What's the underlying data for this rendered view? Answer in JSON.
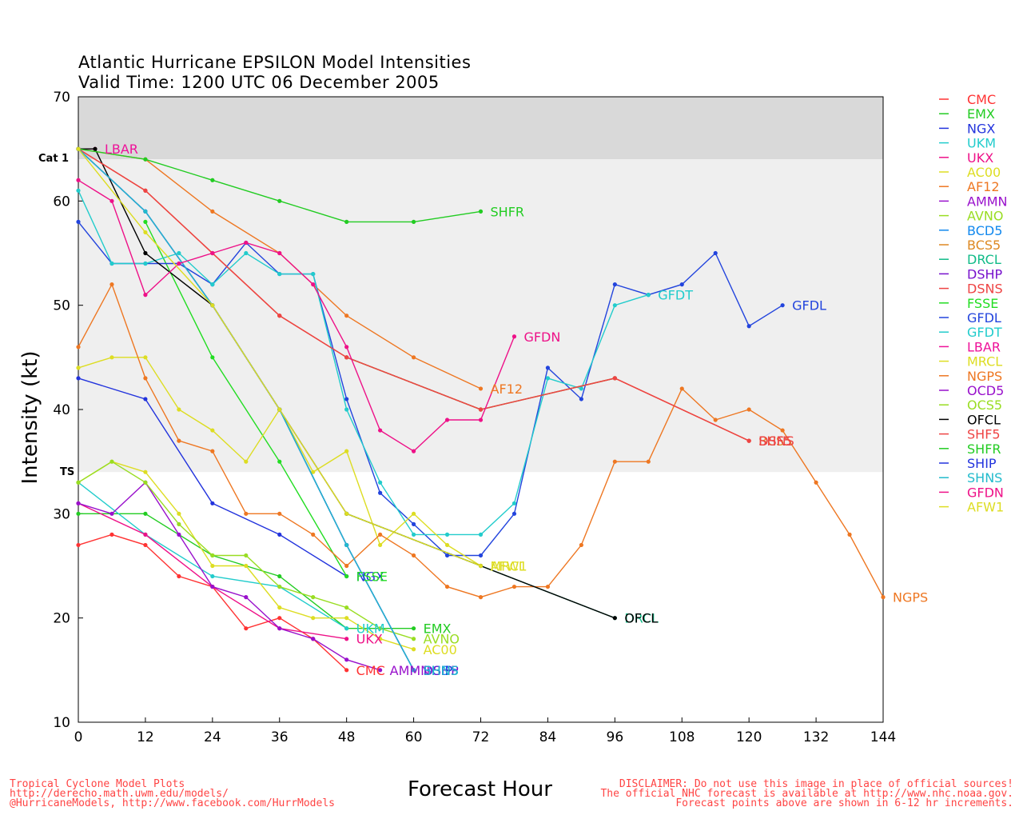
{
  "header": {
    "title_line1": "Atlantic Hurricane EPSILON Model Intensities",
    "title_line2": "Valid Time: 1200 UTC 06 December 2005"
  },
  "footer": {
    "left": [
      "Tropical Cyclone Model Plots",
      "http://derecho.math.uwm.edu/models/",
      "@HurricaneModels, http://www.facebook.com/HurrModels"
    ],
    "right": [
      "DISCLAIMER: Do not use this image in place of official sources!",
      "The official NHC forecast is available at http://www.nhc.noaa.gov.",
      "Forecast points above are shown in 6-12 hr increments."
    ]
  },
  "chart_data": {
    "type": "line",
    "xlabel": "Forecast Hour",
    "ylabel": "Intensity (kt)",
    "xlim": [
      0,
      144
    ],
    "ylim": [
      10,
      70
    ],
    "x_ticks": [
      0,
      12,
      24,
      36,
      48,
      60,
      72,
      84,
      96,
      108,
      120,
      132,
      144
    ],
    "y_ticks": [
      10,
      20,
      30,
      40,
      50,
      60,
      70
    ],
    "category_bands": [
      {
        "label": "Cat 1",
        "from": 64,
        "to": 70,
        "color": "#d9d9d9"
      },
      {
        "label": "TS",
        "from": 34,
        "to": 64,
        "color": "#efefef"
      }
    ],
    "legend_position": "right",
    "series": [
      {
        "name": "CMC",
        "color": "#ff3333",
        "points": [
          [
            0,
            27
          ],
          [
            6,
            28
          ],
          [
            12,
            27
          ],
          [
            18,
            24
          ],
          [
            24,
            23
          ],
          [
            30,
            19
          ],
          [
            36,
            20
          ],
          [
            42,
            18
          ],
          [
            48,
            15
          ]
        ],
        "end_label": "CMC"
      },
      {
        "name": "EMX",
        "color": "#22cc22",
        "points": [
          [
            0,
            30
          ],
          [
            12,
            30
          ],
          [
            24,
            26
          ],
          [
            36,
            24
          ],
          [
            48,
            19
          ],
          [
            60,
            19
          ]
        ],
        "end_label": "EMX"
      },
      {
        "name": "NGX",
        "color": "#2233dd",
        "points": [
          [
            0,
            43
          ],
          [
            12,
            41
          ],
          [
            24,
            31
          ],
          [
            36,
            28
          ],
          [
            48,
            24
          ]
        ],
        "end_label": "NGX"
      },
      {
        "name": "UKM",
        "color": "#22cccc",
        "points": [
          [
            0,
            33
          ],
          [
            12,
            28
          ],
          [
            24,
            24
          ],
          [
            36,
            23
          ],
          [
            48,
            19
          ]
        ],
        "end_label": "UKM"
      },
      {
        "name": "UKX",
        "color": "#ee1188",
        "points": [
          [
            0,
            31
          ],
          [
            12,
            28
          ],
          [
            24,
            23
          ],
          [
            36,
            19
          ],
          [
            48,
            18
          ]
        ],
        "end_label": "UKX"
      },
      {
        "name": "AC00",
        "color": "#dddd22",
        "points": [
          [
            0,
            33
          ],
          [
            6,
            35
          ],
          [
            12,
            34
          ],
          [
            18,
            30
          ],
          [
            24,
            25
          ],
          [
            30,
            25
          ],
          [
            36,
            21
          ],
          [
            42,
            20
          ],
          [
            48,
            20
          ],
          [
            54,
            18
          ],
          [
            60,
            17
          ]
        ],
        "end_label": "AC00"
      },
      {
        "name": "AF12",
        "color": "#ee7722",
        "points": [
          [
            0,
            65
          ],
          [
            12,
            64
          ],
          [
            24,
            59
          ],
          [
            36,
            55
          ],
          [
            48,
            49
          ],
          [
            60,
            45
          ],
          [
            72,
            42
          ]
        ],
        "end_label": "AF12"
      },
      {
        "name": "AMMN",
        "color": "#9911cc",
        "points": [
          [
            0,
            31
          ],
          [
            6,
            30
          ],
          [
            12,
            33
          ],
          [
            18,
            28
          ],
          [
            24,
            23
          ],
          [
            30,
            22
          ],
          [
            36,
            19
          ],
          [
            42,
            18
          ],
          [
            48,
            16
          ],
          [
            54,
            15
          ]
        ],
        "end_label": "AMMN"
      },
      {
        "name": "AVNO",
        "color": "#99dd22",
        "points": [
          [
            0,
            33
          ],
          [
            6,
            35
          ],
          [
            12,
            33
          ],
          [
            18,
            29
          ],
          [
            24,
            26
          ],
          [
            30,
            26
          ],
          [
            36,
            23
          ],
          [
            42,
            22
          ],
          [
            48,
            21
          ],
          [
            54,
            19
          ],
          [
            60,
            18
          ]
        ],
        "end_label": "AVNO"
      },
      {
        "name": "BCD5",
        "color": "#1188ee",
        "points": [
          [
            0,
            65
          ],
          [
            12,
            59
          ],
          [
            24,
            50
          ],
          [
            36,
            40
          ],
          [
            48,
            27
          ],
          [
            60,
            15
          ]
        ],
        "end_label": "BCD5"
      },
      {
        "name": "BCS5",
        "color": "#dd8822",
        "points": [
          [
            0,
            65
          ],
          [
            12,
            61
          ],
          [
            24,
            55
          ],
          [
            36,
            49
          ],
          [
            48,
            45
          ],
          [
            72,
            40
          ],
          [
            96,
            43
          ],
          [
            120,
            37
          ]
        ],
        "end_label": "BCS5"
      },
      {
        "name": "DRCL",
        "color": "#11bb88",
        "points": [
          [
            48,
            30
          ],
          [
            96,
            20
          ]
        ],
        "end_label": "DRCL"
      },
      {
        "name": "DSHP",
        "color": "#7711cc",
        "points": [
          [
            0,
            65
          ],
          [
            12,
            59
          ],
          [
            24,
            50
          ],
          [
            36,
            40
          ],
          [
            48,
            27
          ],
          [
            60,
            15
          ]
        ],
        "end_label": "DSHP"
      },
      {
        "name": "DSNS",
        "color": "#ee4444",
        "points": [
          [
            0,
            65
          ],
          [
            12,
            61
          ],
          [
            24,
            55
          ],
          [
            36,
            49
          ],
          [
            48,
            45
          ],
          [
            72,
            40
          ],
          [
            96,
            43
          ],
          [
            120,
            37
          ]
        ],
        "end_label": "DSNS"
      },
      {
        "name": "FSSE",
        "color": "#22dd22",
        "points": [
          [
            12,
            58
          ],
          [
            24,
            45
          ],
          [
            36,
            35
          ],
          [
            48,
            24
          ]
        ],
        "end_label": "FSSE"
      },
      {
        "name": "GFDL",
        "color": "#2244dd",
        "points": [
          [
            0,
            58
          ],
          [
            6,
            54
          ],
          [
            12,
            54
          ],
          [
            18,
            54
          ],
          [
            24,
            52
          ],
          [
            30,
            56
          ],
          [
            36,
            53
          ],
          [
            42,
            53
          ],
          [
            48,
            41
          ],
          [
            54,
            32
          ],
          [
            60,
            29
          ],
          [
            66,
            26
          ],
          [
            72,
            26
          ],
          [
            78,
            30
          ],
          [
            84,
            44
          ],
          [
            90,
            41
          ],
          [
            96,
            52
          ],
          [
            102,
            51
          ],
          [
            108,
            52
          ],
          [
            114,
            55
          ],
          [
            120,
            48
          ],
          [
            126,
            50
          ]
        ],
        "end_label": "GFDL"
      },
      {
        "name": "GFDT",
        "color": "#22cccc",
        "points": [
          [
            0,
            61
          ],
          [
            6,
            54
          ],
          [
            12,
            54
          ],
          [
            18,
            55
          ],
          [
            24,
            52
          ],
          [
            30,
            55
          ],
          [
            36,
            53
          ],
          [
            42,
            53
          ],
          [
            48,
            40
          ],
          [
            54,
            33
          ],
          [
            60,
            28
          ],
          [
            66,
            28
          ],
          [
            72,
            28
          ],
          [
            78,
            31
          ],
          [
            84,
            43
          ],
          [
            90,
            42
          ],
          [
            96,
            50
          ],
          [
            102,
            51
          ]
        ],
        "end_label": "GFDT"
      },
      {
        "name": "LBAR",
        "color": "#ee1199",
        "points": [
          [
            0,
            65
          ],
          [
            3,
            65
          ]
        ],
        "end_label": "LBAR"
      },
      {
        "name": "MRCL",
        "color": "#dddd22",
        "points": [
          [
            0,
            44
          ],
          [
            6,
            45
          ],
          [
            12,
            45
          ],
          [
            18,
            40
          ],
          [
            24,
            38
          ],
          [
            30,
            35
          ],
          [
            36,
            40
          ],
          [
            42,
            34
          ],
          [
            48,
            36
          ],
          [
            54,
            27
          ],
          [
            60,
            30
          ],
          [
            66,
            27
          ],
          [
            72,
            25
          ]
        ],
        "end_label": "MRCL"
      },
      {
        "name": "NGPS",
        "color": "#ee7722",
        "points": [
          [
            0,
            46
          ],
          [
            6,
            52
          ],
          [
            12,
            43
          ],
          [
            18,
            37
          ],
          [
            24,
            36
          ],
          [
            30,
            30
          ],
          [
            36,
            30
          ],
          [
            42,
            28
          ],
          [
            48,
            25
          ],
          [
            54,
            28
          ],
          [
            60,
            26
          ],
          [
            66,
            23
          ],
          [
            72,
            22
          ],
          [
            78,
            23
          ],
          [
            84,
            23
          ],
          [
            90,
            27
          ],
          [
            96,
            35
          ],
          [
            102,
            35
          ],
          [
            108,
            42
          ],
          [
            114,
            39
          ],
          [
            120,
            40
          ],
          [
            126,
            38
          ],
          [
            132,
            33
          ],
          [
            138,
            28
          ],
          [
            144,
            22
          ]
        ],
        "end_label": "NGPS"
      },
      {
        "name": "OCD5",
        "color": "#9911cc",
        "points": [
          [
            48,
            45
          ],
          [
            72,
            40
          ],
          [
            96,
            43
          ]
        ],
        "end_label": ""
      },
      {
        "name": "OCS5",
        "color": "#99dd22",
        "points": [
          [
            48,
            45
          ],
          [
            72,
            40
          ],
          [
            96,
            43
          ]
        ],
        "end_label": ""
      },
      {
        "name": "OFCL",
        "color": "#000000",
        "points": [
          [
            0,
            65
          ],
          [
            3,
            65
          ],
          [
            12,
            55
          ],
          [
            24,
            50
          ],
          [
            36,
            40
          ],
          [
            48,
            30
          ],
          [
            72,
            25
          ],
          [
            96,
            20
          ]
        ],
        "end_label": "OFCL"
      },
      {
        "name": "SHF5",
        "color": "#ee4444",
        "points": [
          [
            0,
            65
          ],
          [
            12,
            61
          ],
          [
            24,
            55
          ],
          [
            36,
            49
          ],
          [
            48,
            45
          ],
          [
            72,
            40
          ],
          [
            96,
            43
          ],
          [
            120,
            37
          ]
        ],
        "end_label": "SHF5"
      },
      {
        "name": "SHFR",
        "color": "#22cc22",
        "points": [
          [
            0,
            65
          ],
          [
            12,
            64
          ],
          [
            24,
            62
          ],
          [
            36,
            60
          ],
          [
            48,
            58
          ],
          [
            60,
            58
          ],
          [
            72,
            59
          ]
        ],
        "end_label": "SHFR"
      },
      {
        "name": "SHIP",
        "color": "#2233dd",
        "points": [
          [
            0,
            65
          ],
          [
            12,
            59
          ],
          [
            24,
            50
          ],
          [
            36,
            40
          ],
          [
            48,
            27
          ],
          [
            60,
            15
          ]
        ],
        "end_label": "SHIP"
      },
      {
        "name": "SHNS",
        "color": "#22bbcc",
        "points": [
          [
            0,
            65
          ],
          [
            12,
            59
          ],
          [
            24,
            50
          ],
          [
            36,
            40
          ],
          [
            48,
            27
          ],
          [
            60,
            15
          ]
        ],
        "end_label": "SHNS"
      },
      {
        "name": "GFDN",
        "color": "#ee1188",
        "points": [
          [
            0,
            62
          ],
          [
            6,
            60
          ],
          [
            12,
            51
          ],
          [
            18,
            54
          ],
          [
            24,
            55
          ],
          [
            30,
            56
          ],
          [
            36,
            55
          ],
          [
            42,
            52
          ],
          [
            48,
            46
          ],
          [
            54,
            38
          ],
          [
            60,
            36
          ],
          [
            66,
            39
          ],
          [
            72,
            39
          ],
          [
            78,
            47
          ]
        ],
        "end_label": "GFDN"
      },
      {
        "name": "AFW1",
        "color": "#dddd22",
        "points": [
          [
            0,
            65
          ],
          [
            12,
            57
          ],
          [
            24,
            50
          ],
          [
            36,
            40
          ],
          [
            48,
            30
          ],
          [
            72,
            25
          ]
        ],
        "end_label": "AFW1"
      }
    ]
  }
}
